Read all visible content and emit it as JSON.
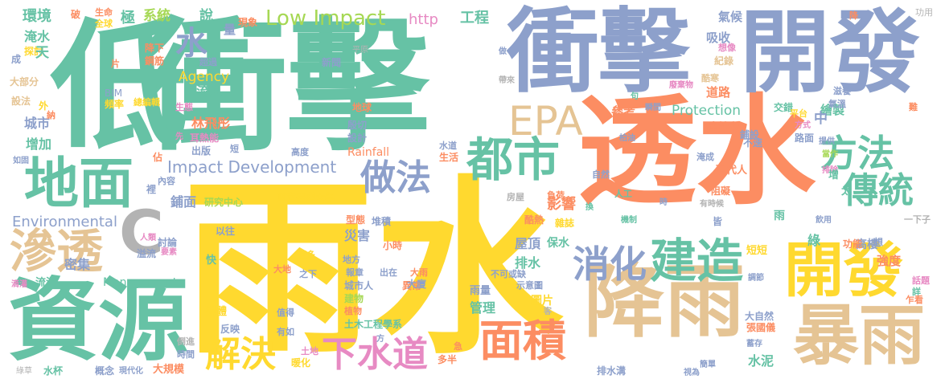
{
  "palette": {
    "green": "#66c2a5",
    "orange": "#fc8d62",
    "blue": "#8da0cb",
    "pink": "#e78ac3",
    "lime": "#a6d854",
    "yellow": "#ffd92f",
    "tan": "#e5c494",
    "gray": "#b3b3b3"
  },
  "words": [
    {
      "text": "雨水",
      "color": "#ffd92f"
    },
    {
      "text": "透水",
      "color": "#fc8d62"
    },
    {
      "text": "衝擊",
      "color": "#66c2a5"
    },
    {
      "text": "衝擊",
      "color": "#8da0cb"
    },
    {
      "text": "低",
      "color": "#66c2a5"
    },
    {
      "text": "開發",
      "color": "#8da0cb"
    },
    {
      "text": "資源",
      "color": "#66c2a5"
    },
    {
      "text": "降雨",
      "color": "#e5c494"
    },
    {
      "text": "開發",
      "color": "#ffd92f"
    },
    {
      "text": "暴雨",
      "color": "#e5c494"
    },
    {
      "text": "地面",
      "color": "#66c2a5"
    },
    {
      "text": "滲透",
      "color": "#e5c494"
    },
    {
      "text": "都市",
      "color": "#66c2a5"
    },
    {
      "text": "建造",
      "color": "#66c2a5"
    },
    {
      "text": "面積",
      "color": "#fc8d62"
    },
    {
      "text": "下水道",
      "color": "#e78ac3"
    },
    {
      "text": "EPA",
      "color": "#e5c494"
    },
    {
      "text": "方法",
      "color": "#66c2a5"
    },
    {
      "text": "傳統",
      "color": "#66c2a5"
    },
    {
      "text": "消化",
      "color": "#8da0cb"
    },
    {
      "text": "解決",
      "color": "#ffd92f"
    },
    {
      "text": "做法",
      "color": "#8da0cb"
    },
    {
      "text": "C",
      "color": "#b3b3b3"
    },
    {
      "text": "水",
      "color": "#8da0cb"
    },
    {
      "text": "Low Impact",
      "color": "#a6d854"
    },
    {
      "text": "Impact Development",
      "color": "#8da0cb"
    },
    {
      "text": "Environmental",
      "color": "#8da0cb"
    },
    {
      "text": "Protection",
      "color": "#66c2a5"
    },
    {
      "text": "Management",
      "color": "#66c2a5"
    },
    {
      "text": "Agency",
      "color": "#ffd92f"
    },
    {
      "text": "Rainfall",
      "color": "#fc8d62"
    },
    {
      "text": "http",
      "color": "#e78ac3"
    },
    {
      "text": "BIM",
      "color": "#8da0cb"
    },
    {
      "text": "工程",
      "color": "#66c2a5"
    },
    {
      "text": "氣候",
      "color": "#8da0cb"
    },
    {
      "text": "功用",
      "color": "#b3b3b3"
    },
    {
      "text": "環境",
      "color": "#66c2a5"
    },
    {
      "text": "破",
      "color": "#fc8d62"
    },
    {
      "text": "生命",
      "color": "#fc8d62"
    },
    {
      "text": "全球",
      "color": "#ffd92f"
    },
    {
      "text": "極",
      "color": "#66c2a5"
    },
    {
      "text": "系統",
      "color": "#a6d854"
    },
    {
      "text": "說",
      "color": "#66c2a5"
    },
    {
      "text": "現象",
      "color": "#fc8d62"
    },
    {
      "text": "淹水",
      "color": "#66c2a5"
    },
    {
      "text": "探討",
      "color": "#ffd92f"
    },
    {
      "text": "大部分",
      "color": "#e5c494"
    },
    {
      "text": "設法",
      "color": "#e5c494"
    },
    {
      "text": "城市",
      "color": "#8da0cb"
    },
    {
      "text": "增加",
      "color": "#66c2a5"
    },
    {
      "text": "天",
      "color": "#66c2a5"
    },
    {
      "text": "量",
      "color": "#8da0cb"
    },
    {
      "text": "吸收",
      "color": "#8da0cb"
    },
    {
      "text": "降下",
      "color": "#fc8d62"
    },
    {
      "text": "鋼筋",
      "color": "#fc8d62"
    },
    {
      "text": "超過",
      "color": "#8da0cb"
    },
    {
      "text": "新聞",
      "color": "#8da0cb"
    },
    {
      "text": "平原",
      "color": "#b3b3b3"
    },
    {
      "text": "紀錄",
      "color": "#e5c494"
    },
    {
      "text": "頻率",
      "color": "#ffd92f"
    },
    {
      "text": "總編輯",
      "color": "#ffd92f"
    },
    {
      "text": "生態",
      "color": "#e78ac3"
    },
    {
      "text": "流入",
      "color": "#66c2a5"
    },
    {
      "text": "林飛彤",
      "color": "#fc8d62"
    },
    {
      "text": "耳熱能",
      "color": "#e78ac3"
    },
    {
      "text": "出版",
      "color": "#8da0cb"
    },
    {
      "text": "參考",
      "color": "#fc8d62"
    },
    {
      "text": "道路",
      "color": "#fc8d62"
    },
    {
      "text": "建築物",
      "color": "#fc8d62"
    },
    {
      "text": "繪製",
      "color": "#66c2a5"
    },
    {
      "text": "中",
      "color": "#8da0cb"
    },
    {
      "text": "交錯",
      "color": "#66c2a5"
    },
    {
      "text": "平台",
      "color": "#ffd92f"
    },
    {
      "text": "地球",
      "color": "#fc8d62"
    },
    {
      "text": "殷切",
      "color": "#8da0cb"
    },
    {
      "text": "設計",
      "color": "#8da0cb"
    },
    {
      "text": "研究中心",
      "color": "#a6d854"
    },
    {
      "text": "國立臺灣大學",
      "color": "#ffd92f"
    },
    {
      "text": "鋪面",
      "color": "#8da0cb"
    },
    {
      "text": "影響",
      "color": "#fc8d62"
    },
    {
      "text": "屋頂",
      "color": "#8da0cb"
    },
    {
      "text": "排水",
      "color": "#66c2a5"
    },
    {
      "text": "管理",
      "color": "#66c2a5"
    },
    {
      "text": "雨量",
      "color": "#8da0cb"
    },
    {
      "text": "圖片",
      "color": "#ffd92f"
    },
    {
      "text": "保水",
      "color": "#66c2a5"
    },
    {
      "text": "災害",
      "color": "#8da0cb"
    },
    {
      "text": "密集",
      "color": "#8da0cb"
    },
    {
      "text": "流滯",
      "color": "#66c2a5"
    },
    {
      "text": "溢流",
      "color": "#8da0cb"
    },
    {
      "text": "討論",
      "color": "#8da0cb"
    },
    {
      "text": "城市人",
      "color": "#8da0cb"
    },
    {
      "text": "建物",
      "color": "#a6d854"
    },
    {
      "text": "植物",
      "color": "#fc8d62"
    },
    {
      "text": "異常",
      "color": "#fc8d62"
    },
    {
      "text": "反映",
      "color": "#8da0cb"
    },
    {
      "text": "土木工程學系",
      "color": "#66c2a5"
    },
    {
      "text": "水泥",
      "color": "#66c2a5"
    },
    {
      "text": "強度",
      "color": "#fc8d62"
    },
    {
      "text": "高樓",
      "color": "#8da0cb"
    },
    {
      "text": "話題",
      "color": "#e78ac3"
    },
    {
      "text": "大自然",
      "color": "#8da0cb"
    },
    {
      "text": "排水溝",
      "color": "#8da0cb"
    },
    {
      "text": "大規模",
      "color": "#fc8d62"
    },
    {
      "text": "現代化",
      "color": "#8da0cb"
    },
    {
      "text": "概念",
      "color": "#8da0cb"
    },
    {
      "text": "水杯",
      "color": "#66c2a5"
    },
    {
      "text": "綠草",
      "color": "#b3b3b3"
    },
    {
      "text": "多半",
      "color": "#fc8d62"
    },
    {
      "text": "暖化",
      "color": "#ffd92f"
    },
    {
      "text": "土地",
      "color": "#e78ac3"
    },
    {
      "text": "倒進",
      "color": "#b3b3b3"
    },
    {
      "text": "時間",
      "color": "#8da0cb"
    },
    {
      "text": "現代人",
      "color": "#fc8d62"
    },
    {
      "text": "阻礙",
      "color": "#fc8d62"
    },
    {
      "text": "短短",
      "color": "#ffd92f"
    },
    {
      "text": "一下子",
      "color": "#b3b3b3"
    },
    {
      "text": "功能",
      "color": "#fc8d62"
    },
    {
      "text": "想",
      "color": "#8da0cb"
    },
    {
      "text": "綠",
      "color": "#66c2a5"
    },
    {
      "text": "雨",
      "color": "#66c2a5"
    },
    {
      "text": "路面",
      "color": "#8da0cb"
    },
    {
      "text": "鋪設",
      "color": "#8da0cb"
    },
    {
      "text": "不速",
      "color": "#8da0cb"
    },
    {
      "text": "方式",
      "color": "#e78ac3"
    },
    {
      "text": "提供",
      "color": "#8da0cb"
    },
    {
      "text": "當作",
      "color": "#a6d854"
    },
    {
      "text": "排除",
      "color": "#e78ac3"
    },
    {
      "text": "增",
      "color": "#66c2a5"
    },
    {
      "text": "太",
      "color": "#66c2a5"
    },
    {
      "text": "飲用",
      "color": "#8da0cb"
    },
    {
      "text": "淹成",
      "color": "#8da0cb"
    },
    {
      "text": "自然",
      "color": "#8da0cb"
    },
    {
      "text": "人工",
      "color": "#66c2a5"
    },
    {
      "text": "時",
      "color": "#8da0cb"
    },
    {
      "text": "機制",
      "color": "#66c2a5"
    },
    {
      "text": "有時候",
      "color": "#b3b3b3"
    },
    {
      "text": "皆",
      "color": "#8da0cb"
    },
    {
      "text": "負荷",
      "color": "#fc8d62"
    },
    {
      "text": "房屋",
      "color": "#b3b3b3"
    },
    {
      "text": "雜誌",
      "color": "#ffd92f"
    },
    {
      "text": "酷熱",
      "color": "#fc8d62"
    },
    {
      "text": "換",
      "color": "#66c2a5"
    },
    {
      "text": "生活",
      "color": "#fc8d62"
    },
    {
      "text": "水道",
      "color": "#8da0cb"
    },
    {
      "text": "高度",
      "color": "#8da0cb"
    },
    {
      "text": "短",
      "color": "#8da0cb"
    },
    {
      "text": "佔",
      "color": "#fc8d62"
    },
    {
      "text": "內容",
      "color": "#8da0cb"
    },
    {
      "text": "裡",
      "color": "#8da0cb"
    },
    {
      "text": "如固",
      "color": "#8da0cb"
    },
    {
      "text": "外",
      "color": "#ffd92f"
    },
    {
      "text": "納",
      "color": "#fc8d62"
    },
    {
      "text": "成",
      "color": "#8da0cb"
    },
    {
      "text": "片",
      "color": "#fc8d62"
    },
    {
      "text": "之下",
      "color": "#8da0cb"
    },
    {
      "text": "更多",
      "color": "#ffd92f"
    },
    {
      "text": "大地",
      "color": "#fc8d62"
    },
    {
      "text": "小時",
      "color": "#fc8d62"
    },
    {
      "text": "地方",
      "color": "#8da0cb"
    },
    {
      "text": "報章",
      "color": "#8da0cb"
    },
    {
      "text": "出在",
      "color": "#8da0cb"
    },
    {
      "text": "大雨",
      "color": "#fc8d62"
    },
    {
      "text": "大廈",
      "color": "#8da0cb"
    },
    {
      "text": "型態",
      "color": "#fc8d62"
    },
    {
      "text": "堆積",
      "color": "#8da0cb"
    },
    {
      "text": "以往",
      "color": "#8da0cb"
    },
    {
      "text": "不可或缺",
      "color": "#8da0cb"
    },
    {
      "text": "示意圖",
      "color": "#8da0cb"
    },
    {
      "text": "值得",
      "color": "#8da0cb"
    },
    {
      "text": "有如",
      "color": "#8da0cb"
    },
    {
      "text": "媒體",
      "color": "#ffd92f"
    },
    {
      "text": "人類",
      "color": "#e78ac3"
    },
    {
      "text": "要素",
      "color": "#e78ac3"
    },
    {
      "text": "快",
      "color": "#66c2a5"
    },
    {
      "text": "滴灌",
      "color": "#e78ac3"
    },
    {
      "text": "急",
      "color": "#fc8d62"
    },
    {
      "text": "方",
      "color": "#8da0cb"
    },
    {
      "text": "客",
      "color": "#b3b3b3"
    },
    {
      "text": "調節",
      "color": "#8da0cb"
    },
    {
      "text": "詳",
      "color": "#66c2a5"
    },
    {
      "text": "乍看",
      "color": "#fc8d62"
    },
    {
      "text": "蓄存",
      "color": "#8da0cb"
    },
    {
      "text": "張國儀",
      "color": "#fc8d62"
    },
    {
      "text": "簡單",
      "color": "#8da0cb"
    },
    {
      "text": "視為",
      "color": "#8da0cb"
    },
    {
      "text": "想像",
      "color": "#e78ac3"
    },
    {
      "text": "做",
      "color": "#8da0cb"
    },
    {
      "text": "句",
      "color": "#66c2a5"
    },
    {
      "text": "廢棄物",
      "color": "#e78ac3"
    },
    {
      "text": "酷寒",
      "color": "#e5c494"
    },
    {
      "text": "瞬間",
      "color": "#8da0cb"
    },
    {
      "text": "柏油",
      "color": "#8da0cb"
    },
    {
      "text": "帶來",
      "color": "#b3b3b3"
    },
    {
      "text": "滋養",
      "color": "#8da0cb"
    },
    {
      "text": "氣溫",
      "color": "#8da0cb"
    },
    {
      "text": "難",
      "color": "#fc8d62"
    },
    {
      "text": "降",
      "color": "#fc8d62"
    },
    {
      "text": "先",
      "color": "#e78ac3"
    }
  ]
}
